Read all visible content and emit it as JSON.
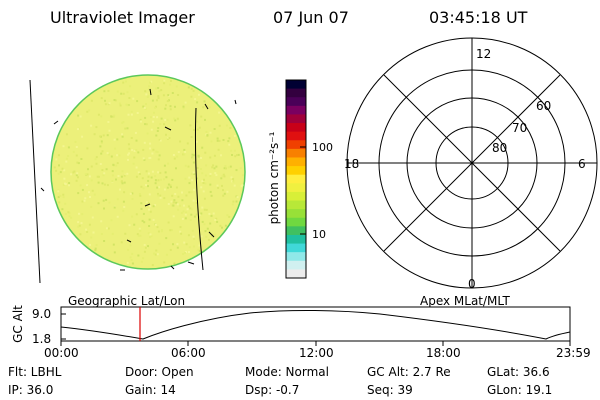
{
  "header": {
    "title": "Ultraviolet Imager",
    "date": "07 Jun 07",
    "time": "03:45:18 UT"
  },
  "colorbar": {
    "unit_label": "photon cm⁻²s⁻¹",
    "tick_labels": [
      "100",
      "10"
    ],
    "colors": [
      "#000033",
      "#33003f",
      "#4a0058",
      "#7a0060",
      "#a0003a",
      "#c80018",
      "#e01010",
      "#f04000",
      "#f88000",
      "#ffb000",
      "#ffd000",
      "#ffee40",
      "#f0f040",
      "#d8ef38",
      "#b8e838",
      "#98e038",
      "#70d840",
      "#40c060",
      "#20c0a0",
      "#40d8d8",
      "#90e8e8",
      "#d0f0f0",
      "#ececec"
    ]
  },
  "image_panel": {
    "caption": "Geographic Lat/Lon",
    "disk_color": "#ecf07a"
  },
  "polar_panel": {
    "caption": "Apex MLat/MLT",
    "mlt_labels": [
      "12",
      "18",
      "6",
      "0"
    ],
    "mlat_labels": [
      "60",
      "70",
      "80"
    ]
  },
  "altitude_plot": {
    "ylabel": "GC Alt",
    "y_ticks": [
      "9.0",
      "1.8"
    ],
    "x_ticks": [
      "00:00",
      "06:00",
      "12:00",
      "18:00",
      "23:59"
    ],
    "marker_color": "#dd0000"
  },
  "footer": {
    "filter": "Flt: LBHL",
    "door": "Door: Open",
    "mode": "Mode: Normal",
    "gc_alt": "GC Alt: 2.7 Re",
    "glat": "GLat:  36.6",
    "ip": "IP: 36.0",
    "gain": "Gain: 14",
    "dsp": "Dsp:   -0.7",
    "seq": "Seq: 39",
    "glon": "GLon:  19.1"
  }
}
